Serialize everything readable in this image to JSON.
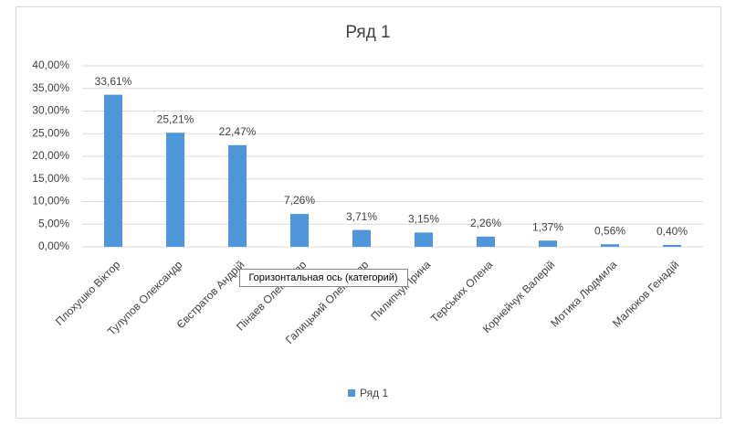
{
  "chart_data": {
    "type": "bar",
    "title": "Ряд 1",
    "categories": [
      "Плохушко Віктор",
      "Тулупов Олександр",
      "Євстратов Андрій",
      "Пінаев Олександр",
      "Галицький Олександр",
      "Пилипчук Ірина",
      "Терських Олена",
      "Корнейчук Валерій",
      "Мотика Людмила",
      "Малюков Генадій"
    ],
    "series": [
      {
        "name": "Ряд 1",
        "color": "#4e95d9",
        "values": [
          33.61,
          25.21,
          22.47,
          7.26,
          3.71,
          3.15,
          2.26,
          1.37,
          0.56,
          0.4
        ],
        "value_labels": [
          "33,61%",
          "25,21%",
          "22,47%",
          "7,26%",
          "3,71%",
          "3,15%",
          "2,26%",
          "1,37%",
          "0,56%",
          "0,40%"
        ]
      }
    ],
    "ylim": [
      0,
      40
    ],
    "yticks": [
      {
        "value": 0,
        "label": "0,00%"
      },
      {
        "value": 5,
        "label": "5,00%"
      },
      {
        "value": 10,
        "label": "10,00%"
      },
      {
        "value": 15,
        "label": "15,00%"
      },
      {
        "value": 20,
        "label": "20,00%"
      },
      {
        "value": 25,
        "label": "25,00%"
      },
      {
        "value": 30,
        "label": "30,00%"
      },
      {
        "value": 35,
        "label": "35,00%"
      },
      {
        "value": 40,
        "label": "40,00%"
      }
    ],
    "grid": true,
    "legend": "bottom",
    "annotation": "Горизонтальная ось (категорий)"
  }
}
